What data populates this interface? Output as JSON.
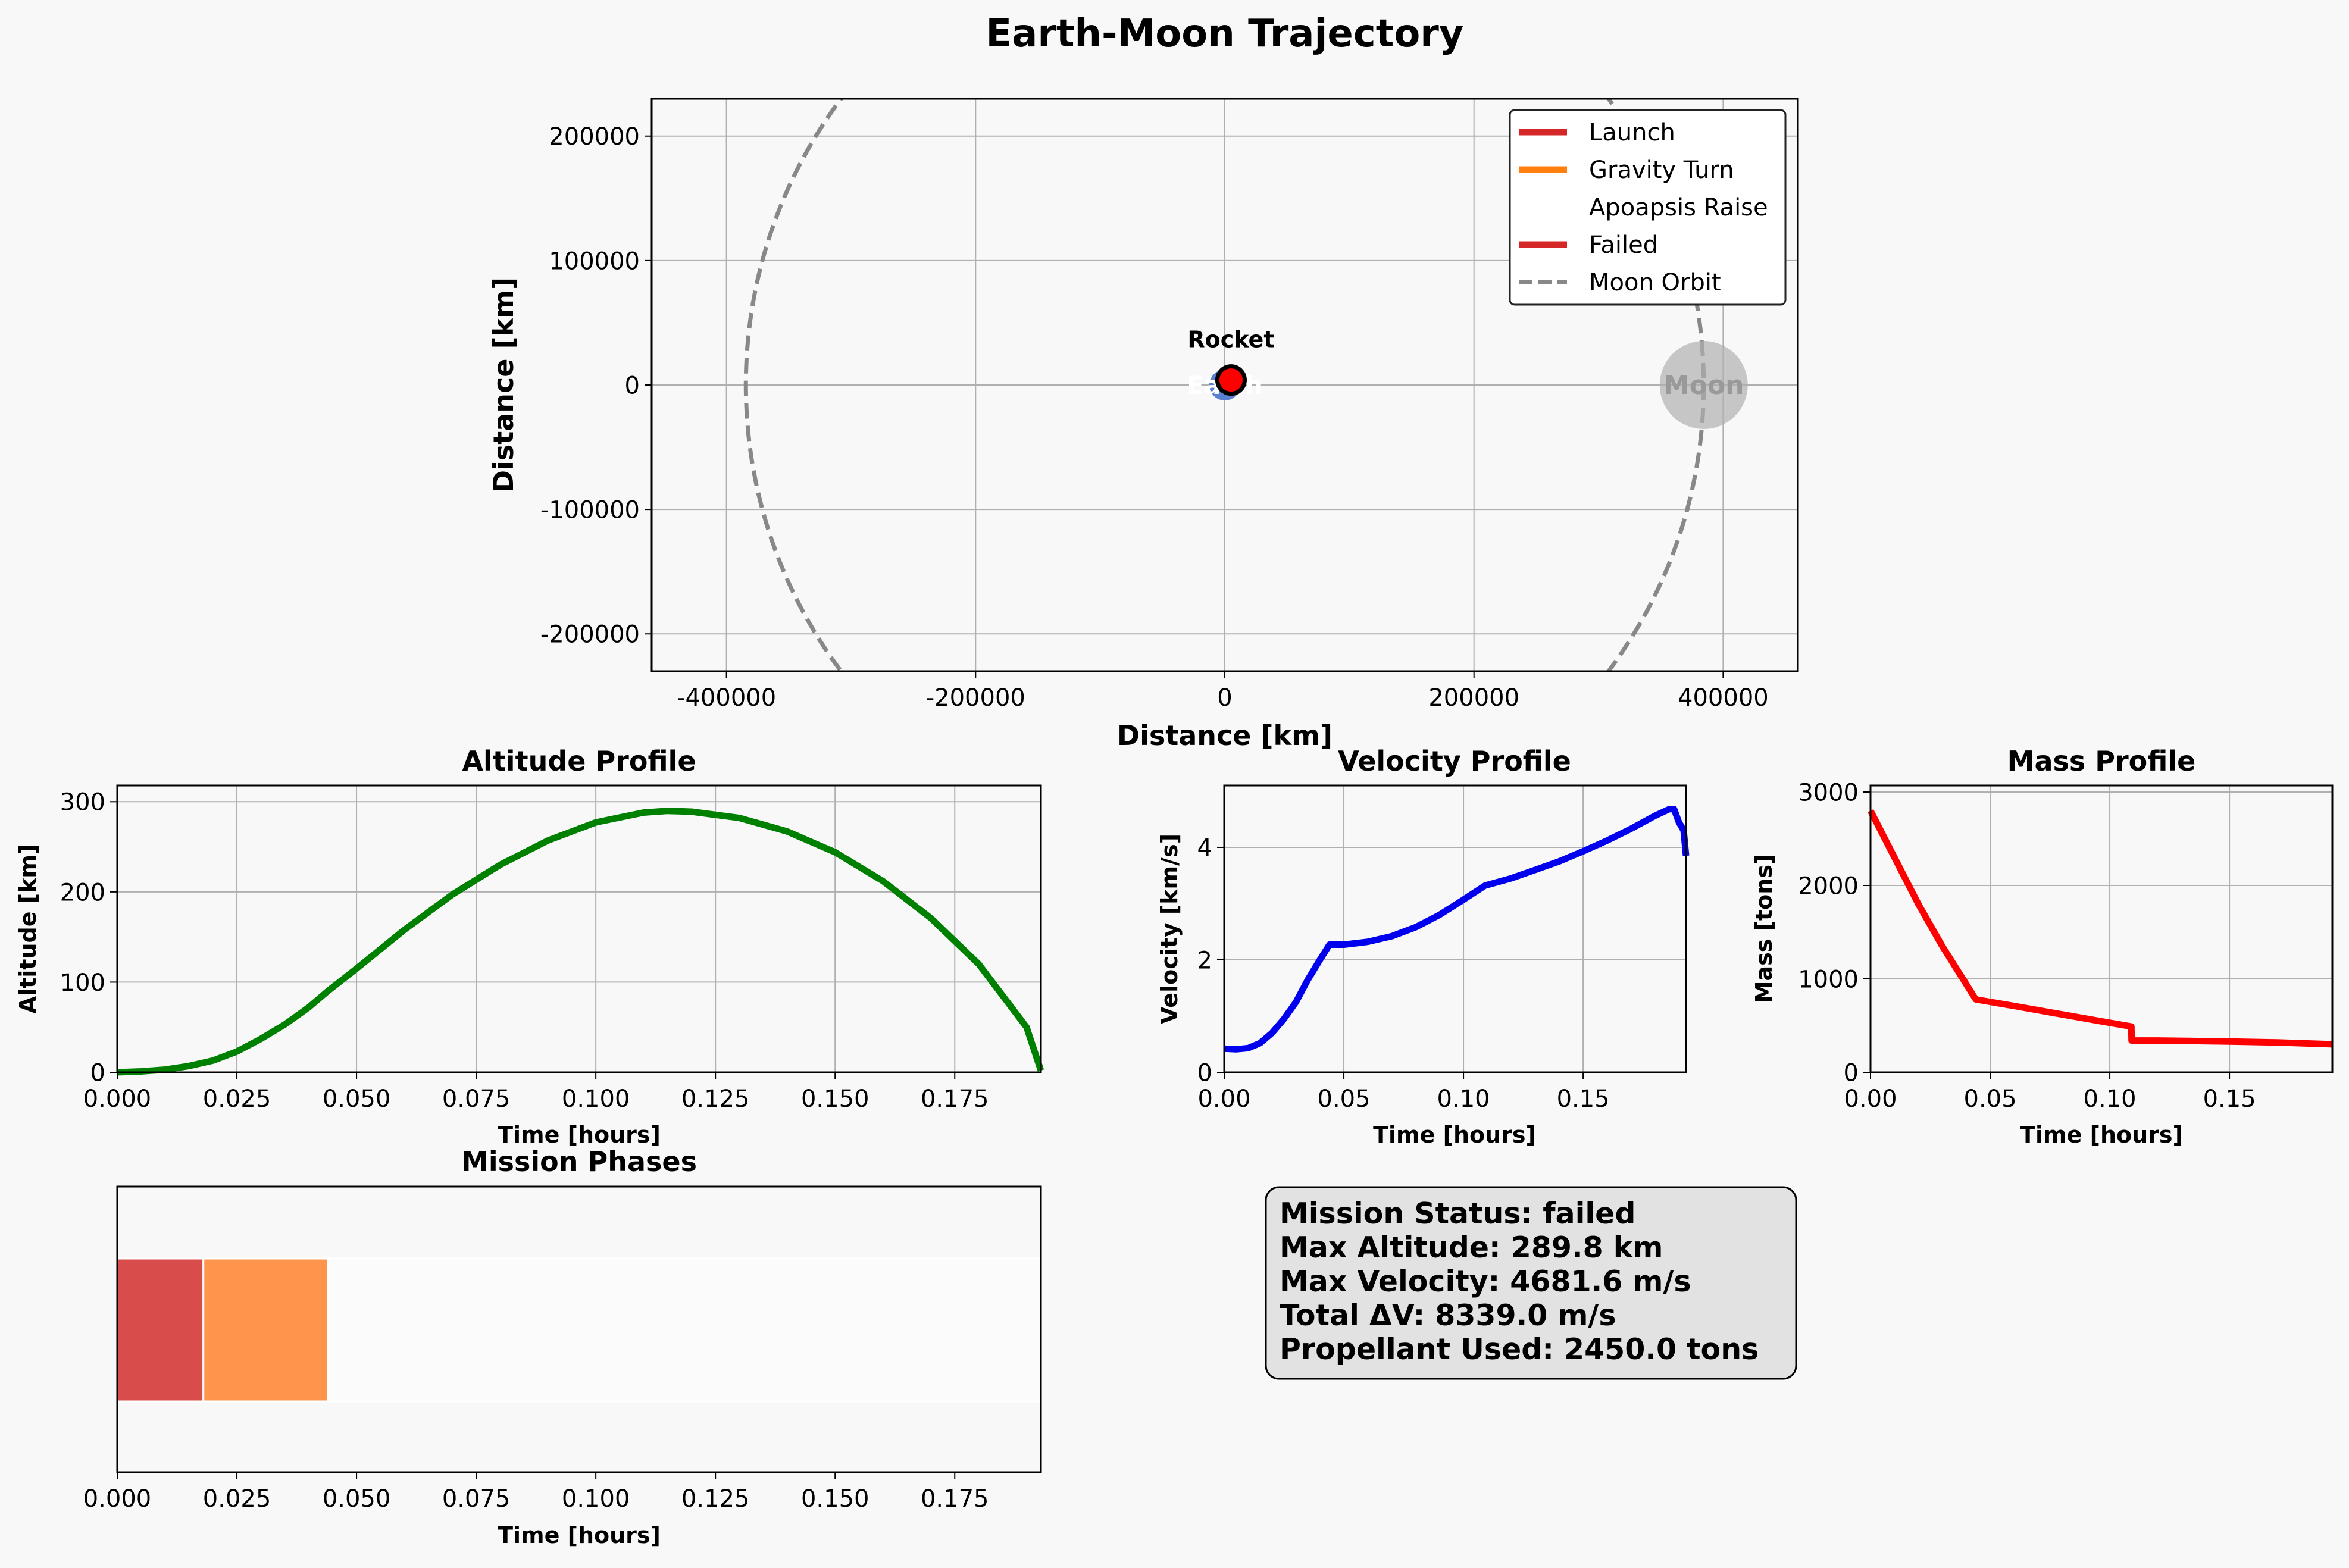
{
  "figure": {
    "suptitle": "Earth-Moon Trajectory",
    "background": "#f8f8f8"
  },
  "chart_data": [
    {
      "id": "trajectory",
      "type": "scatter",
      "title": "",
      "xlabel": "Distance [km]",
      "ylabel": "Distance [km]",
      "xlim": [
        -460000,
        460000
      ],
      "ylim": [
        -230000,
        230000
      ],
      "xticks": [
        -400000,
        -200000,
        0,
        200000,
        400000
      ],
      "yticks": [
        -200000,
        -100000,
        0,
        100000,
        200000
      ],
      "grid": true,
      "moon_orbit_radius": 384400,
      "earth": {
        "x": 0,
        "y": 0,
        "label": "Earth",
        "color": "#5b7fd1"
      },
      "moon": {
        "x": 384400,
        "y": 0,
        "label": "Moon",
        "color": "#b0b0b0"
      },
      "rocket": {
        "x": 5000,
        "y": 4000,
        "label": "Rocket",
        "color": "#ff0000"
      },
      "legend": {
        "placement": "top-right",
        "entries": [
          {
            "label": "Launch",
            "color": "#d62728",
            "style": "solid"
          },
          {
            "label": "Gravity Turn",
            "color": "#ff7f0e",
            "style": "solid"
          },
          {
            "label": "Apoapsis Raise",
            "color": "#ffffff",
            "style": "solid"
          },
          {
            "label": "Failed",
            "color": "#d62728",
            "style": "solid"
          },
          {
            "label": "Moon Orbit",
            "color": "#888888",
            "style": "dashed"
          }
        ]
      }
    },
    {
      "id": "altitude",
      "type": "line",
      "title": "Altitude Profile",
      "xlabel": "Time [hours]",
      "ylabel": "Altitude [km]",
      "xlim": [
        0,
        0.193
      ],
      "ylim": [
        0,
        318
      ],
      "xticks": [
        0,
        0.025,
        0.05,
        0.075,
        0.1,
        0.125,
        0.15,
        0.175
      ],
      "xtick_labels": [
        "0.000",
        "0.025",
        "0.050",
        "0.075",
        "0.100",
        "0.125",
        "0.150",
        "0.175"
      ],
      "yticks": [
        0,
        100,
        200,
        300
      ],
      "grid": true,
      "color": "#008000",
      "x": [
        0,
        0.005,
        0.01,
        0.015,
        0.02,
        0.025,
        0.03,
        0.035,
        0.04,
        0.044,
        0.05,
        0.06,
        0.07,
        0.08,
        0.09,
        0.1,
        0.11,
        0.115,
        0.12,
        0.13,
        0.14,
        0.15,
        0.16,
        0.17,
        0.18,
        0.19,
        0.193
      ],
      "y": [
        0,
        1,
        3,
        7,
        13,
        23,
        37,
        53,
        72,
        90,
        115,
        158,
        197,
        230,
        257,
        277,
        288,
        289.8,
        289,
        282,
        267,
        244,
        212,
        171,
        120,
        50,
        2
      ]
    },
    {
      "id": "velocity",
      "type": "line",
      "title": "Velocity Profile",
      "xlabel": "Time [hours]",
      "ylabel": "Velocity [km/s]",
      "xlim": [
        0,
        0.193
      ],
      "ylim": [
        0,
        5.1
      ],
      "xticks": [
        0,
        0.05,
        0.1,
        0.15
      ],
      "xtick_labels": [
        "0.00",
        "0.05",
        "0.10",
        "0.15"
      ],
      "yticks": [
        0,
        2,
        4
      ],
      "grid": true,
      "color": "#0000ee",
      "x": [
        0,
        0.005,
        0.01,
        0.015,
        0.02,
        0.025,
        0.03,
        0.035,
        0.04,
        0.044,
        0.05,
        0.06,
        0.07,
        0.08,
        0.09,
        0.1,
        0.109,
        0.12,
        0.13,
        0.14,
        0.15,
        0.16,
        0.17,
        0.18,
        0.186,
        0.188,
        0.19,
        0.192,
        0.193
      ],
      "y": [
        0.42,
        0.41,
        0.43,
        0.52,
        0.7,
        0.95,
        1.25,
        1.65,
        2.0,
        2.27,
        2.27,
        2.32,
        2.42,
        2.58,
        2.8,
        3.07,
        3.32,
        3.45,
        3.6,
        3.75,
        3.93,
        4.12,
        4.33,
        4.56,
        4.68,
        4.68,
        4.45,
        4.3,
        3.85
      ]
    },
    {
      "id": "mass",
      "type": "line",
      "title": "Mass Profile",
      "xlabel": "Time [hours]",
      "ylabel": "Mass [tons]",
      "xlim": [
        0,
        0.193
      ],
      "ylim": [
        0,
        3070
      ],
      "xticks": [
        0,
        0.05,
        0.1,
        0.15
      ],
      "xtick_labels": [
        "0.00",
        "0.05",
        "0.10",
        "0.15"
      ],
      "yticks": [
        0,
        1000,
        2000,
        3000
      ],
      "grid": true,
      "color": "#ff0000",
      "x": [
        0,
        0.01,
        0.02,
        0.03,
        0.044,
        0.06,
        0.08,
        0.1,
        0.109,
        0.1091,
        0.12,
        0.15,
        0.17,
        0.193
      ],
      "y": [
        2800,
        2300,
        1800,
        1350,
        780,
        710,
        620,
        530,
        490,
        340,
        340,
        330,
        320,
        300
      ]
    },
    {
      "id": "phases",
      "type": "bar",
      "title": "Mission Phases",
      "xlabel": "Time [hours]",
      "ylabel": "",
      "xlim": [
        0,
        0.193
      ],
      "xticks": [
        0,
        0.025,
        0.05,
        0.075,
        0.1,
        0.125,
        0.15,
        0.175
      ],
      "xtick_labels": [
        "0.000",
        "0.025",
        "0.050",
        "0.075",
        "0.100",
        "0.125",
        "0.150",
        "0.175"
      ],
      "grid": false,
      "segments": [
        {
          "name": "Launch",
          "start": 0,
          "end": 0.018,
          "color": "#d94c4c"
        },
        {
          "name": "Gravity Turn",
          "start": 0.018,
          "end": 0.044,
          "color": "#ff944d"
        },
        {
          "name": "Apoapsis Raise",
          "start": 0.044,
          "end": 0.193,
          "color": "#fbfbfb"
        }
      ]
    }
  ],
  "status_box": {
    "lines": [
      "Mission Status: failed",
      "Max Altitude: 289.8 km",
      "Max Velocity: 4681.6 m/s",
      "Total ΔV: 8339.0 m/s",
      "Propellant Used: 2450.0 tons"
    ]
  }
}
